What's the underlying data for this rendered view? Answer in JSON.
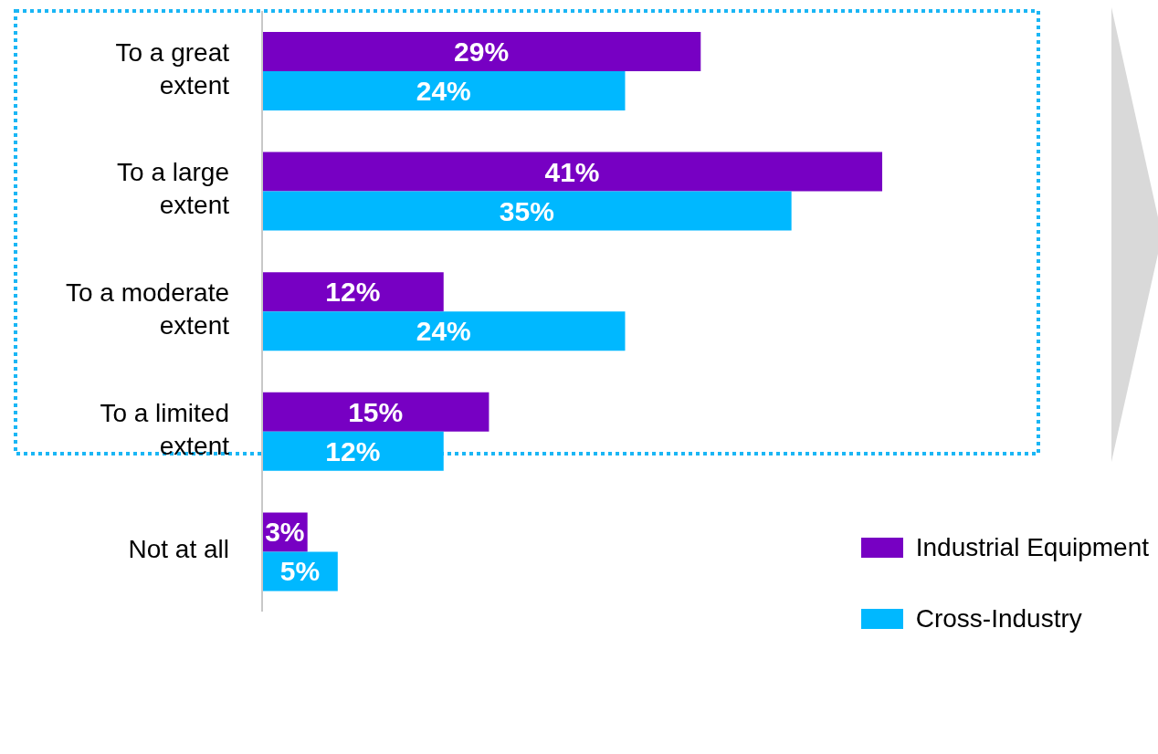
{
  "chart_data": {
    "type": "bar",
    "orientation": "horizontal",
    "categories": [
      "To a great extent",
      "To a large extent",
      "To a moderate extent",
      "To a limited extent",
      "Not at all"
    ],
    "series": [
      {
        "name": "Industrial Equipment",
        "color": "#7700c3",
        "values": [
          29,
          41,
          12,
          15,
          3
        ],
        "value_labels": [
          "29%",
          "41%",
          "12%",
          "15%",
          "3%"
        ]
      },
      {
        "name": "Cross-Industry",
        "color": "#00b8ff",
        "values": [
          24,
          35,
          24,
          12,
          5
        ],
        "value_labels": [
          "24%",
          "35%",
          "24%",
          "12%",
          "5%"
        ]
      }
    ],
    "legend": "bottom right"
  }
}
